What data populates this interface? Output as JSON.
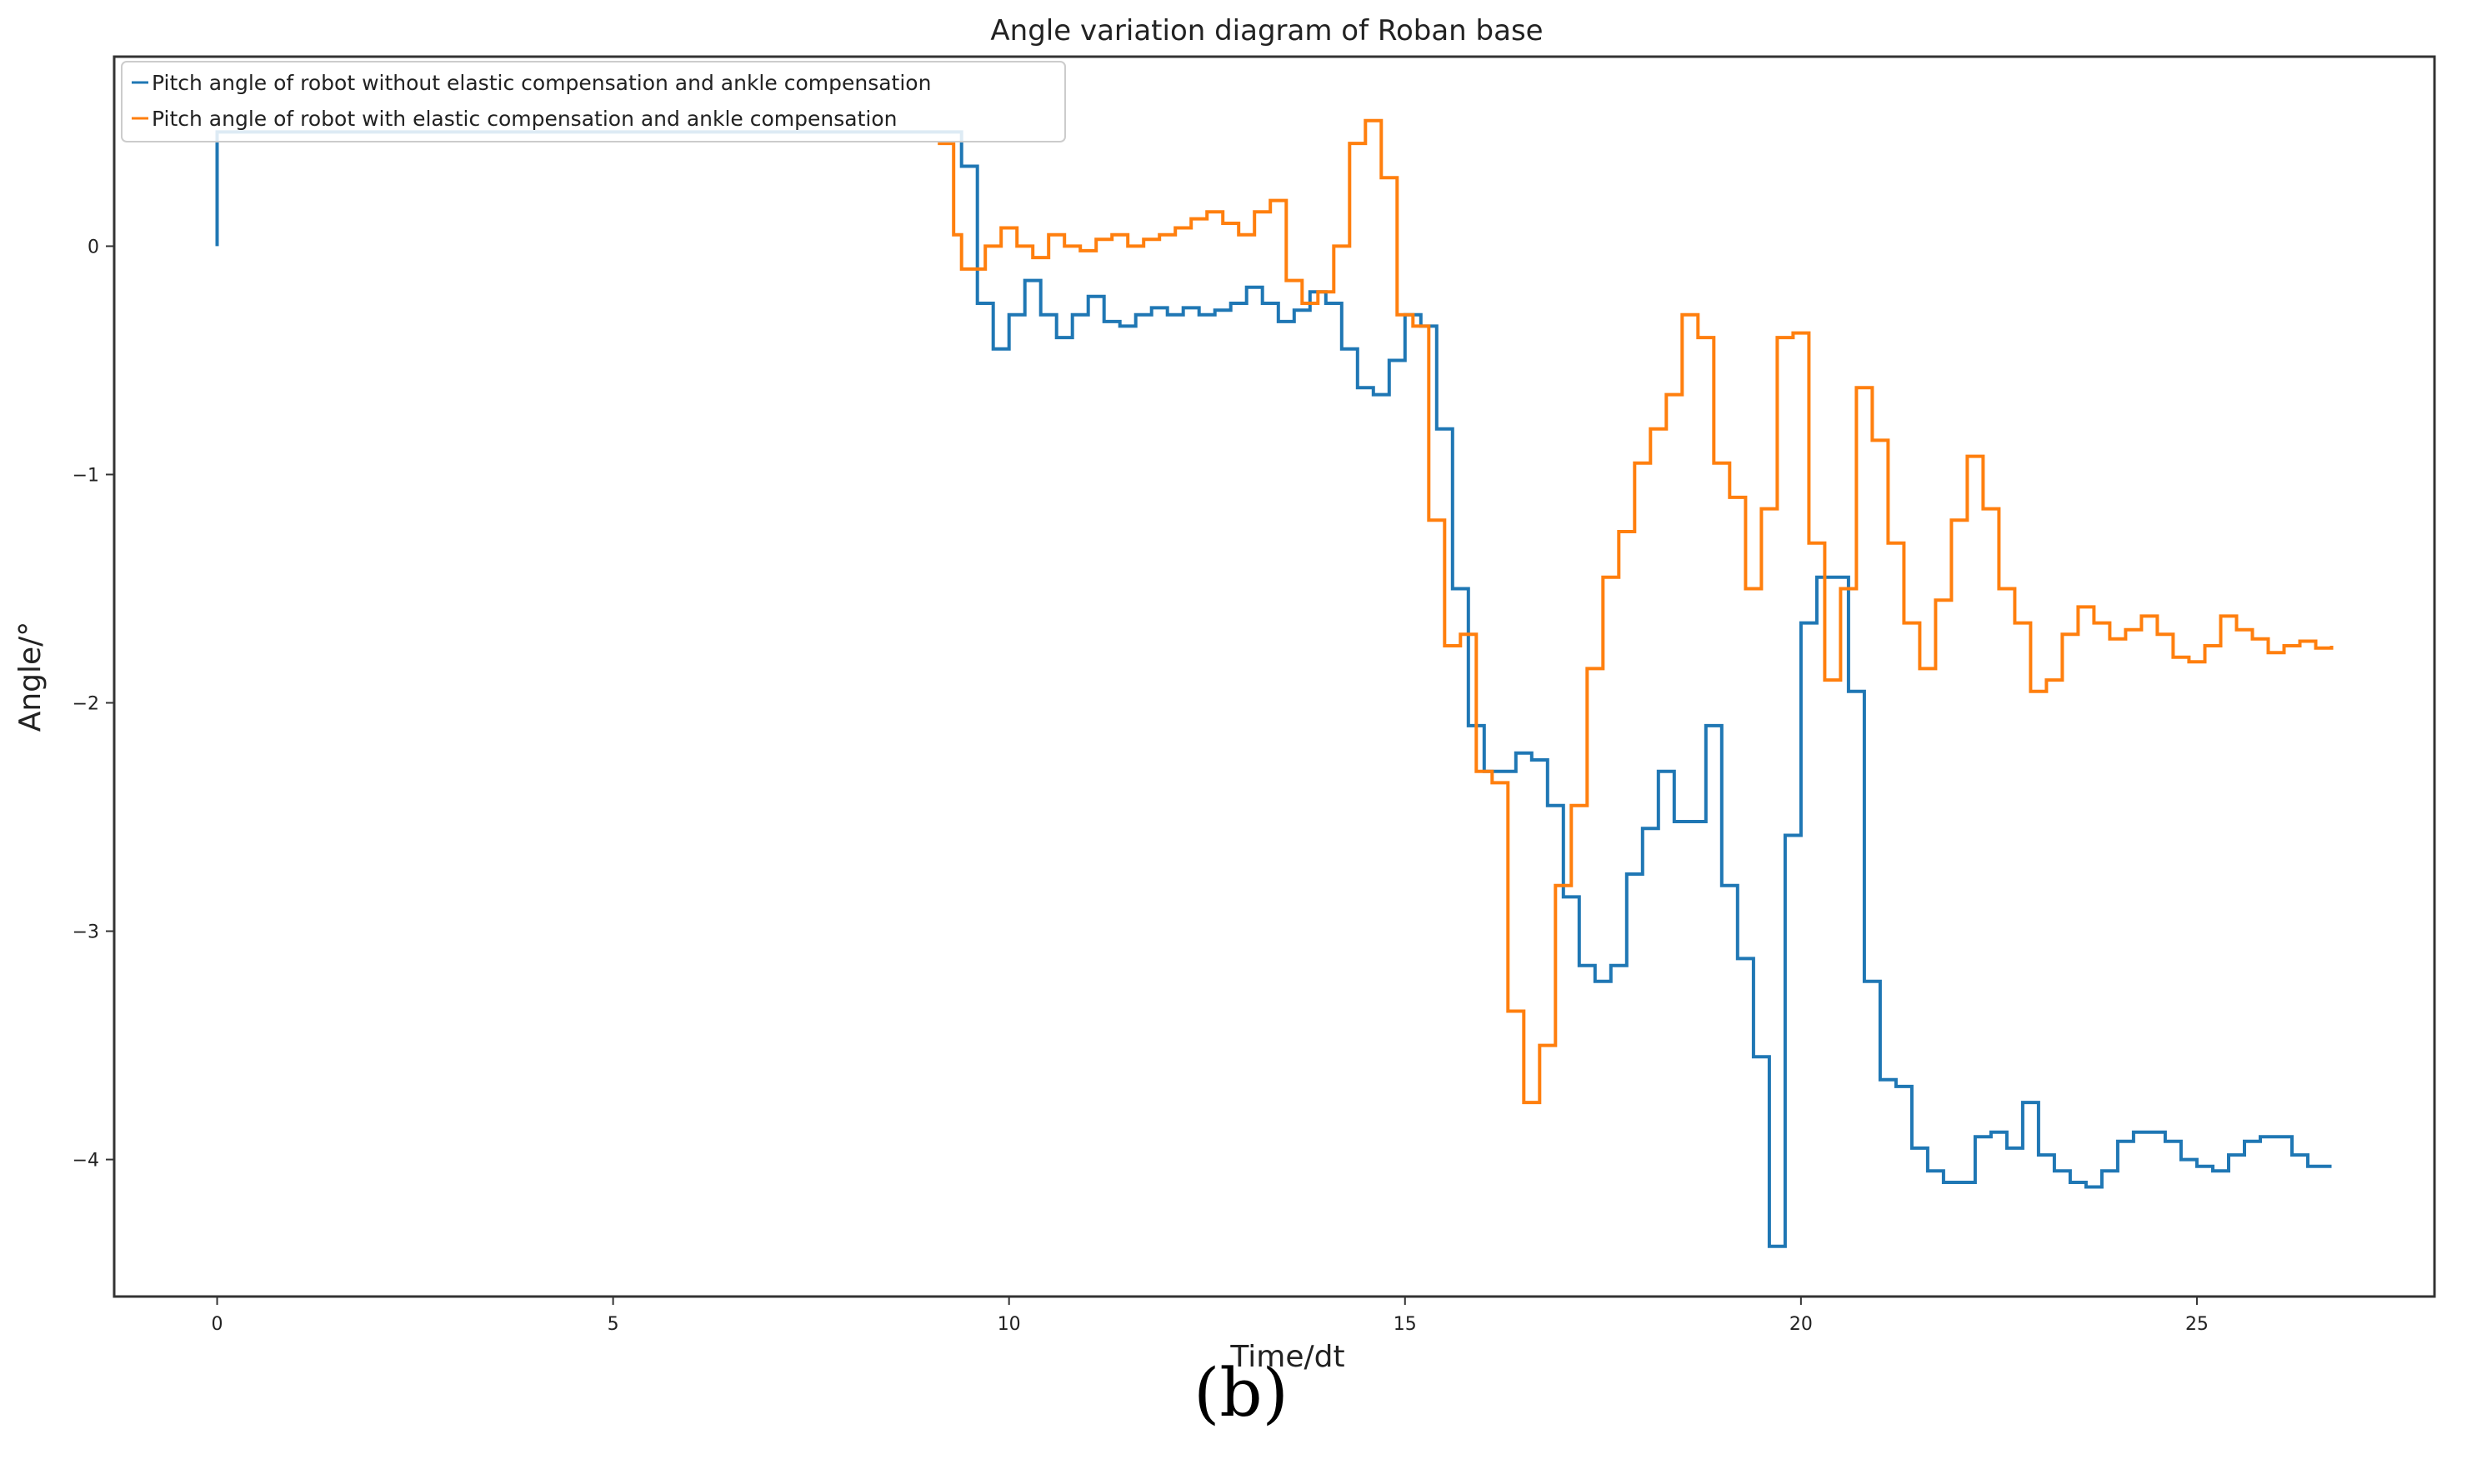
{
  "figure": {
    "panel_label": "(b)"
  },
  "chart_data": {
    "type": "line",
    "title": "Angle variation diagram of Roban base",
    "xlabel": "Time/dt",
    "ylabel": "Angle/°",
    "xlim": [
      -1.3,
      28.0
    ],
    "ylim": [
      -4.6,
      0.83
    ],
    "xticks": [
      0,
      5,
      10,
      15,
      20,
      25
    ],
    "xtick_labels": [
      "0",
      "5",
      "10",
      "15",
      "20",
      "25"
    ],
    "yticks": [
      0,
      -1,
      -2,
      -3,
      -4
    ],
    "ytick_labels": [
      "0",
      "−1",
      "−2",
      "−3",
      "−4"
    ],
    "grid": false,
    "legend_position": "top-left",
    "step": true,
    "series": [
      {
        "name": "Pitch angle of robot without elastic compensation and ankle compensation",
        "color": "#1f77b4",
        "x": [
          0,
          0,
          0,
          9.3,
          9.4,
          9.5,
          9.6,
          9.8,
          10.0,
          10.2,
          10.4,
          10.6,
          10.8,
          11.0,
          11.2,
          11.4,
          11.6,
          11.8,
          12.0,
          12.2,
          12.4,
          12.6,
          12.8,
          13.0,
          13.2,
          13.4,
          13.6,
          13.8,
          14.0,
          14.2,
          14.4,
          14.6,
          14.8,
          15.0,
          15.2,
          15.4,
          15.6,
          15.8,
          16.0,
          16.2,
          16.4,
          16.6,
          16.8,
          17.0,
          17.2,
          17.4,
          17.6,
          17.8,
          18.0,
          18.2,
          18.4,
          18.6,
          18.8,
          19.0,
          19.2,
          19.4,
          19.6,
          19.8,
          20.0,
          20.2,
          20.4,
          20.6,
          20.8,
          21.0,
          21.2,
          21.4,
          21.6,
          21.8,
          22.0,
          22.2,
          22.4,
          22.6,
          22.8,
          23.0,
          23.2,
          23.4,
          23.6,
          23.8,
          24.0,
          24.2,
          24.4,
          24.6,
          24.8,
          25.0,
          25.2,
          25.4,
          25.6,
          25.8,
          26.0,
          26.2,
          26.4,
          26.7
        ],
        "y": [
          0,
          0.5,
          0.5,
          0.5,
          0.35,
          0.35,
          -0.25,
          -0.45,
          -0.3,
          -0.15,
          -0.3,
          -0.4,
          -0.3,
          -0.22,
          -0.33,
          -0.35,
          -0.3,
          -0.27,
          -0.3,
          -0.27,
          -0.3,
          -0.28,
          -0.25,
          -0.18,
          -0.25,
          -0.33,
          -0.28,
          -0.2,
          -0.25,
          -0.45,
          -0.62,
          -0.65,
          -0.5,
          -0.3,
          -0.35,
          -0.8,
          -1.5,
          -2.1,
          -2.3,
          -2.3,
          -2.22,
          -2.25,
          -2.45,
          -2.85,
          -3.15,
          -3.22,
          -3.15,
          -2.75,
          -2.55,
          -2.3,
          -2.52,
          -2.52,
          -2.1,
          -2.8,
          -3.12,
          -3.55,
          -4.38,
          -2.58,
          -1.65,
          -1.45,
          -1.45,
          -1.95,
          -3.22,
          -3.65,
          -3.68,
          -3.95,
          -4.05,
          -4.1,
          -4.1,
          -3.9,
          -3.88,
          -3.95,
          -3.75,
          -3.98,
          -4.05,
          -4.1,
          -4.12,
          -4.05,
          -3.92,
          -3.88,
          -3.88,
          -3.92,
          -4.0,
          -4.03,
          -4.05,
          -3.98,
          -3.92,
          -3.9,
          -3.9,
          -3.98,
          -4.03,
          -4.03
        ]
      },
      {
        "name": "Pitch angle of robot with elastic compensation and ankle compensation",
        "color": "#ff7f0e",
        "x": [
          9.1,
          9.3,
          9.4,
          9.5,
          9.7,
          9.9,
          10.1,
          10.3,
          10.5,
          10.7,
          10.9,
          11.1,
          11.3,
          11.5,
          11.7,
          11.9,
          12.1,
          12.3,
          12.5,
          12.7,
          12.9,
          13.1,
          13.3,
          13.5,
          13.7,
          13.9,
          14.1,
          14.3,
          14.5,
          14.7,
          14.9,
          15.1,
          15.3,
          15.5,
          15.7,
          15.9,
          16.1,
          16.3,
          16.5,
          16.7,
          16.9,
          17.1,
          17.3,
          17.5,
          17.7,
          17.9,
          18.1,
          18.3,
          18.5,
          18.7,
          18.9,
          19.1,
          19.3,
          19.5,
          19.7,
          19.9,
          20.1,
          20.3,
          20.5,
          20.7,
          20.9,
          21.1,
          21.3,
          21.5,
          21.7,
          21.9,
          22.1,
          22.3,
          22.5,
          22.7,
          22.9,
          23.1,
          23.3,
          23.5,
          23.7,
          23.9,
          24.1,
          24.3,
          24.5,
          24.7,
          24.9,
          25.1,
          25.3,
          25.5,
          25.7,
          25.9,
          26.1,
          26.3,
          26.5,
          26.7
        ],
        "y": [
          0.45,
          0.05,
          -0.1,
          -0.1,
          0.0,
          0.08,
          0.0,
          -0.05,
          0.05,
          0.0,
          -0.02,
          0.03,
          0.05,
          0.0,
          0.03,
          0.05,
          0.08,
          0.12,
          0.15,
          0.1,
          0.05,
          0.15,
          0.2,
          -0.15,
          -0.25,
          -0.2,
          0.0,
          0.45,
          0.55,
          0.3,
          -0.3,
          -0.35,
          -1.2,
          -1.75,
          -1.7,
          -2.3,
          -2.35,
          -3.35,
          -3.75,
          -3.5,
          -2.8,
          -2.45,
          -1.85,
          -1.45,
          -1.25,
          -0.95,
          -0.8,
          -0.65,
          -0.3,
          -0.4,
          -0.95,
          -1.1,
          -1.5,
          -1.15,
          -0.4,
          -0.38,
          -1.3,
          -1.9,
          -1.5,
          -0.62,
          -0.85,
          -1.3,
          -1.65,
          -1.85,
          -1.55,
          -1.2,
          -0.92,
          -1.15,
          -1.5,
          -1.65,
          -1.95,
          -1.9,
          -1.7,
          -1.58,
          -1.65,
          -1.72,
          -1.68,
          -1.62,
          -1.7,
          -1.8,
          -1.82,
          -1.75,
          -1.62,
          -1.68,
          -1.72,
          -1.78,
          -1.75,
          -1.73,
          -1.76,
          -1.75
        ]
      }
    ]
  }
}
